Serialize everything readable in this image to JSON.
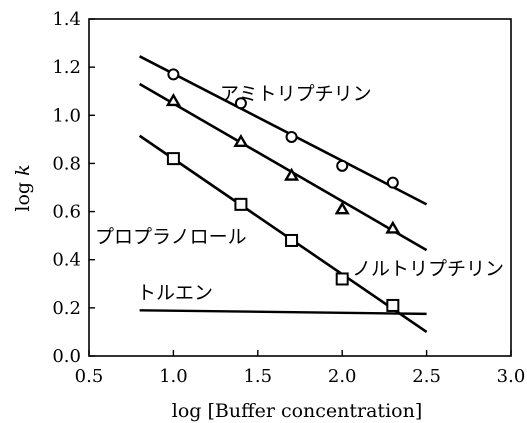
{
  "chart_data": {
    "type": "scatter",
    "xlabel": "log [Buffer concentration]",
    "ylabel_main": "log ",
    "ylabel_italic": "k",
    "xlim": [
      0.5,
      3.0
    ],
    "ylim": [
      0.0,
      1.4
    ],
    "x_ticks": [
      "0.5",
      "1.0",
      "1.5",
      "2.0",
      "2.5",
      "3.0"
    ],
    "y_ticks": [
      "0.0",
      "0.2",
      "0.4",
      "0.6",
      "0.8",
      "1.0",
      "1.2",
      "1.4"
    ],
    "grid": false,
    "series": [
      {
        "name": "アミトリプチリン",
        "marker": "circle",
        "x": [
          1.0,
          1.4,
          1.7,
          2.0,
          2.3
        ],
        "y": [
          1.17,
          1.05,
          0.91,
          0.79,
          0.72
        ],
        "fit": {
          "x": [
            0.8,
            2.5
          ],
          "y": [
            1.245,
            0.63
          ]
        }
      },
      {
        "name": "",
        "marker": "triangle",
        "x": [
          1.0,
          1.4,
          1.7,
          2.0,
          2.3
        ],
        "y": [
          1.06,
          0.89,
          0.75,
          0.61,
          0.53
        ],
        "fit": {
          "x": [
            0.8,
            2.5
          ],
          "y": [
            1.13,
            0.44
          ]
        }
      },
      {
        "name": "ノルトリプチリン",
        "marker": "square",
        "x": [
          1.0,
          1.4,
          1.7,
          2.0,
          2.3
        ],
        "y": [
          0.82,
          0.63,
          0.48,
          0.32,
          0.21
        ],
        "fit": {
          "x": [
            0.8,
            2.5
          ],
          "y": [
            0.915,
            0.1
          ]
        }
      },
      {
        "name": "トルエン",
        "marker": "none",
        "x": [],
        "y": [],
        "fit": {
          "x": [
            0.8,
            2.5
          ],
          "y": [
            0.19,
            0.175
          ]
        }
      }
    ],
    "annotations": [
      {
        "text": "アミトリプチリン",
        "series": 0
      },
      {
        "text": "プロプラノロール",
        "series": 1
      },
      {
        "text": "ノルトリプチリン",
        "series": 2
      },
      {
        "text": "トルエン",
        "series": 3
      }
    ]
  }
}
